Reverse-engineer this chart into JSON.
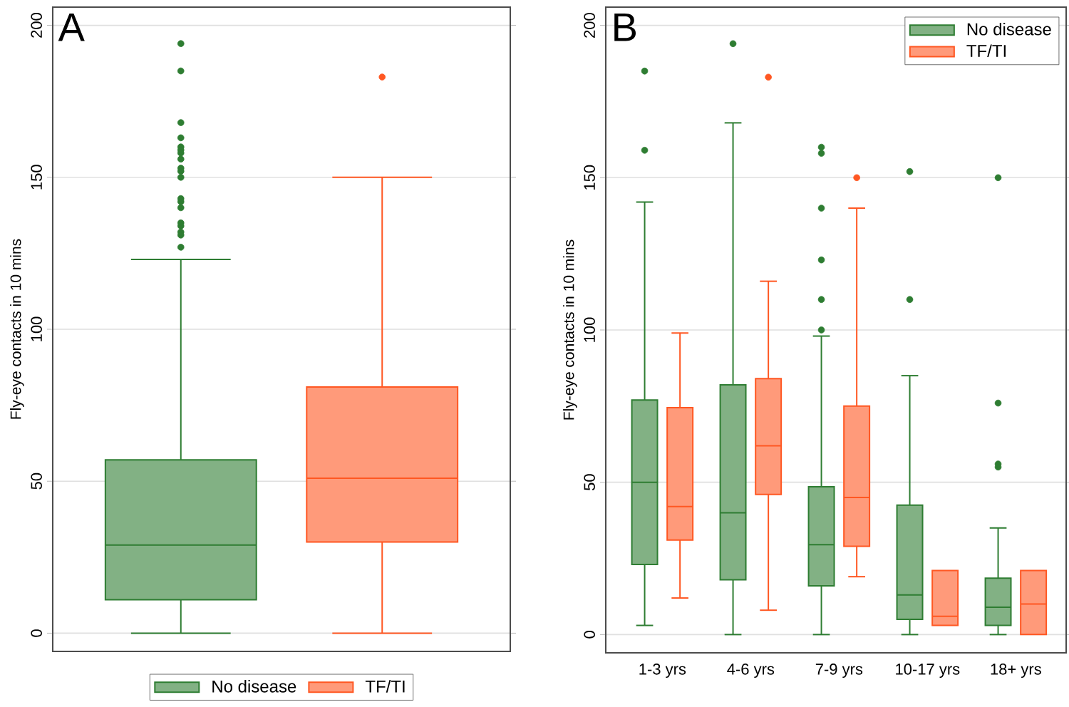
{
  "chart_data": [
    {
      "type": "box",
      "title": "A",
      "ylabel": "Fly-eye contacts in 10 mins",
      "categories": [
        null
      ],
      "tick_labels": "y",
      "ylim": [
        -6,
        206
      ],
      "yticks": [
        0,
        50,
        100,
        150,
        200
      ],
      "grid": "y",
      "legend": "bottom",
      "series": [
        {
          "name": "No disease",
          "color": "#2e7d32",
          "boxes": [
            {
              "low": 0,
              "q1": 11,
              "median": 29,
              "q3": 57,
              "high": 123,
              "outliers": [
                194,
                185,
                168,
                163,
                160,
                159,
                158,
                156,
                153,
                152,
                150,
                143,
                142,
                140,
                135,
                134,
                132,
                131,
                127
              ]
            }
          ]
        },
        {
          "name": "TF/TI",
          "color": "#ff5722",
          "boxes": [
            {
              "low": 0,
              "q1": 30,
              "median": 51,
              "q3": 81,
              "high": 150,
              "outliers": [
                183
              ]
            }
          ]
        }
      ]
    },
    {
      "type": "box",
      "title": "B",
      "ylabel": "Fly-eye contacts in 10 mins",
      "categories": [
        "1-3 yrs",
        "4-6 yrs",
        "7-9 yrs",
        "10-17 yrs",
        "18+ yrs"
      ],
      "ylim": [
        -6,
        206
      ],
      "yticks": [
        0,
        50,
        100,
        150,
        200
      ],
      "grid": "y",
      "legend": "top right",
      "series": [
        {
          "name": "No disease",
          "color": "#2e7d32",
          "boxes": [
            {
              "low": 3,
              "q1": 23,
              "median": 50,
              "q3": 77,
              "high": 142,
              "outliers": [
                185,
                159
              ]
            },
            {
              "low": 0,
              "q1": 18,
              "median": 40,
              "q3": 82,
              "high": 168,
              "outliers": [
                194
              ]
            },
            {
              "low": 0,
              "q1": 16,
              "median": 29.5,
              "q3": 48.5,
              "high": 98,
              "outliers": [
                160,
                158,
                140,
                123,
                110,
                100
              ]
            },
            {
              "low": 0,
              "q1": 5,
              "median": 13,
              "q3": 42.5,
              "high": 85,
              "outliers": [
                152,
                110
              ]
            },
            {
              "low": 0,
              "q1": 3,
              "median": 9,
              "q3": 18.5,
              "high": 35,
              "outliers": [
                150,
                76,
                56,
                55
              ]
            }
          ]
        },
        {
          "name": "TF/TI",
          "color": "#ff5722",
          "boxes": [
            {
              "low": 12,
              "q1": 31,
              "median": 42,
              "q3": 74.5,
              "high": 99
            },
            {
              "low": 8,
              "q1": 46,
              "median": 62,
              "q3": 84,
              "high": 116,
              "outliers": [
                183
              ]
            },
            {
              "low": 19,
              "q1": 29,
              "median": 45,
              "q3": 75,
              "high": 140,
              "outliers": [
                150
              ]
            },
            {
              "low": 3,
              "q1": 3,
              "median": 6,
              "q3": 21,
              "high": 21
            },
            {
              "low": 0,
              "q1": 0,
              "median": 10,
              "q3": 21,
              "high": 21
            }
          ]
        }
      ]
    }
  ]
}
